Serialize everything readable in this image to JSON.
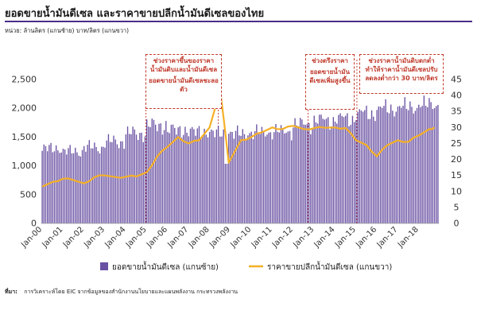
{
  "title": "ยอดขายน้ำมันดีเซล และราคาขายปลีกน้ำมันดีเซลของไทย",
  "unit_note": "หน่วย: ล้านลิตร (แกนซ้าย) บาท/ลิตร (แกนขวา)",
  "source_label": "ที่มา:",
  "source_text": "การวิเคราะห์โดย EIC จากข้อมูลของสำนักงานนโยบายและแผนพลังงาน กระทรวงพลังงาน",
  "annotations": [
    {
      "text": "ช่วงราคาขึ้นของราคาน้ำมันดิบและน้ำมันดีเซล"
    },
    {
      "text": "ยอดขายน้ำมันดีเซลชะลอตัว"
    },
    {
      "text": "ช่วงตรึงราคา"
    },
    {
      "text": "ยอดขายน้ำมันดีเซลเพิ่มสูงขึ้น"
    },
    {
      "text": "ช่วงราคาน้ำมันดิบตกต่ำทำให้ราคาน้ำมันดีเซลปรับลดลงต่ำกว่า 30 บาท/ลิตร"
    }
  ],
  "colors": {
    "bars": "#6a52a3",
    "line": "#f5b027",
    "callout": "#c0392b",
    "title_rule": "#4a2c8a"
  },
  "chart_data": {
    "type": "bar",
    "x_start": "Jan-00",
    "frequency": "monthly",
    "categories_labels": [
      "Jan-00",
      "Jan-01",
      "Jan-02",
      "Jan-03",
      "Jan-04",
      "Jan-05",
      "Jan-06",
      "Jan-07",
      "Jan-08",
      "Jan-09",
      "Jan-10",
      "Jan-11",
      "Jan-12",
      "Jan-13",
      "Jan-14",
      "Jan-15",
      "Jan-16",
      "Jan-17",
      "Jan-18"
    ],
    "y_left": {
      "min": 0,
      "max": 2500,
      "ticks": [
        "0",
        "500",
        "1,000",
        "1,500",
        "2,000",
        "2,500"
      ]
    },
    "y_right": {
      "min": 0,
      "max": 45,
      "ticks": [
        "0",
        "5",
        "10",
        "15",
        "20",
        "25",
        "30",
        "35",
        "40",
        "45"
      ]
    },
    "series": [
      {
        "name": "ยอดขายน้ำมันดีเซล (แกนซ้าย)",
        "type": "bar",
        "axis": "left",
        "annual_values": [
          1300,
          1250,
          1320,
          1420,
          1560,
          1700,
          1620,
          1590,
          1570,
          1560,
          1580,
          1600,
          1720,
          1790,
          1820,
          1910,
          1990,
          2020,
          2060
        ]
      },
      {
        "name": "ราคาขายปลีกน้ำมันดีเซล (แกนขวา)",
        "type": "line",
        "axis": "right",
        "points": [
          [
            "Jan-00",
            11.5
          ],
          [
            "Jul-00",
            13.0
          ],
          [
            "Jan-01",
            14.0
          ],
          [
            "Jul-01",
            13.5
          ],
          [
            "Jan-02",
            12.5
          ],
          [
            "Jul-02",
            14.5
          ],
          [
            "Jan-03",
            15.0
          ],
          [
            "Jul-03",
            14.5
          ],
          [
            "Jan-04",
            14.6
          ],
          [
            "Jul-04",
            14.7
          ],
          [
            "Jan-05",
            16.0
          ],
          [
            "Jul-05",
            21.0
          ],
          [
            "Jan-06",
            24.0
          ],
          [
            "Jul-06",
            27.0
          ],
          [
            "Jan-07",
            25.0
          ],
          [
            "Jul-07",
            26.0
          ],
          [
            "Jan-08",
            30.0
          ],
          [
            "Jul-08",
            42.0
          ],
          [
            "Dec-08",
            19.0
          ],
          [
            "Jul-09",
            26.0
          ],
          [
            "Jan-10",
            27.0
          ],
          [
            "Jul-10",
            28.5
          ],
          [
            "Jan-11",
            30.0
          ],
          [
            "Jul-11",
            29.5
          ],
          [
            "Jan-12",
            30.5
          ],
          [
            "Jul-12",
            29.5
          ],
          [
            "Jan-13",
            29.8
          ],
          [
            "Jul-13",
            29.9
          ],
          [
            "Jan-14",
            30.0
          ],
          [
            "Jul-14",
            29.8
          ],
          [
            "Jan-15",
            26.0
          ],
          [
            "Jul-15",
            24.5
          ],
          [
            "Jan-16",
            21.0
          ],
          [
            "Jul-16",
            24.5
          ],
          [
            "Jan-17",
            26.0
          ],
          [
            "Jul-17",
            25.5
          ],
          [
            "Jan-18",
            27.5
          ],
          [
            "Jul-18",
            29.5
          ],
          [
            "Oct-18",
            30.0
          ]
        ]
      }
    ],
    "legend_position": "bottom",
    "grid": false
  }
}
